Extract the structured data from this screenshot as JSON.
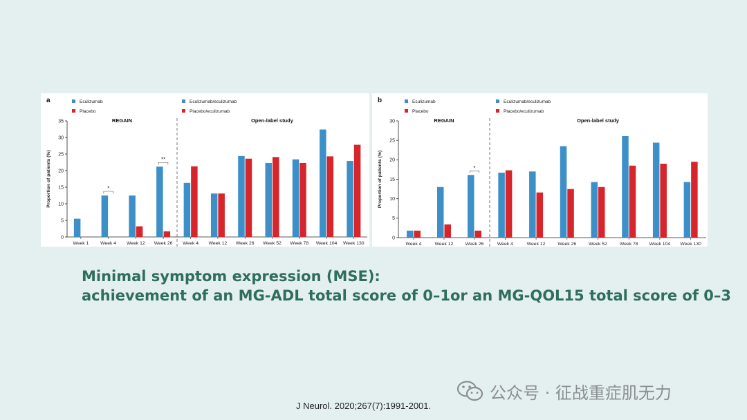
{
  "chart_data": [
    {
      "type": "bar",
      "panel_label": "a",
      "ylabel": "Proportion of patients (%)",
      "ylim": [
        0,
        35
      ],
      "yticks": [
        0,
        5,
        10,
        15,
        20,
        25,
        30,
        35
      ],
      "sections": [
        {
          "title": "REGAIN",
          "categories": [
            "Week 1",
            "Week 4",
            "Week 12",
            "Week 26"
          ],
          "series": [
            {
              "name": "Eculizumab",
              "color": "#3d8fc8",
              "values": [
                5.5,
                12.5,
                12.5,
                21.2
              ]
            },
            {
              "name": "Placebo",
              "color": "#d6262c",
              "values": [
                0,
                0,
                3.2,
                1.7
              ]
            }
          ]
        },
        {
          "title": "Open-label study",
          "categories": [
            "Week 4",
            "Week 12",
            "Week 26",
            "Week 52",
            "Week 78",
            "Week 104",
            "Week 130"
          ],
          "series": [
            {
              "name": "Eculizumab/eculizumab",
              "color": "#3d8fc8",
              "values": [
                16.3,
                13.1,
                24.4,
                22.3,
                23.4,
                32.4,
                22.9
              ]
            },
            {
              "name": "Placebo/eculizumab",
              "color": "#d6262c",
              "values": [
                21.3,
                13.1,
                23.6,
                24.1,
                22.3,
                24.3,
                27.8
              ]
            }
          ]
        }
      ],
      "annotations": [
        {
          "category": "Week 4",
          "text": "*"
        },
        {
          "category": "Week 26",
          "text": "**"
        }
      ],
      "legend_position": "top-left"
    },
    {
      "type": "bar",
      "panel_label": "b",
      "ylabel": "Proportion of patients (%)",
      "ylim": [
        0,
        30
      ],
      "yticks": [
        0,
        5,
        10,
        15,
        20,
        25,
        30
      ],
      "sections": [
        {
          "title": "REGAIN",
          "categories": [
            "Week 4",
            "Week 12",
            "Week 26"
          ],
          "series": [
            {
              "name": "Eculizumab",
              "color": "#3d8fc8",
              "values": [
                1.8,
                13.0,
                16.1
              ]
            },
            {
              "name": "Placebo",
              "color": "#d6262c",
              "values": [
                1.8,
                3.4,
                1.8
              ]
            }
          ]
        },
        {
          "title": "Open-label study",
          "categories": [
            "Week 4",
            "Week 12",
            "Week 26",
            "Week 52",
            "Week 78",
            "Week 104",
            "Week 130"
          ],
          "series": [
            {
              "name": "Eculizumab/eculizumab",
              "color": "#3d8fc8",
              "values": [
                16.7,
                17.0,
                23.5,
                14.3,
                26.1,
                24.4,
                14.3
              ]
            },
            {
              "name": "Placebo/eculizumab",
              "color": "#d6262c",
              "values": [
                17.3,
                11.6,
                12.5,
                13.0,
                18.5,
                19.0,
                19.5
              ]
            }
          ]
        }
      ],
      "annotations": [
        {
          "category": "Week 26",
          "text": "*"
        }
      ],
      "legend_position": "top-left"
    }
  ],
  "caption": {
    "line1": "Minimal symptom expression (MSE):",
    "line2": "achievement of an MG-ADL total score of 0–1or an MG-QOL15 total score of 0–3"
  },
  "citation": "J Neurol. 2020;267(7):1991-2001.",
  "watermark": {
    "text": "公众号 · 征战重症肌无力",
    "icon": "wechat-icon"
  }
}
